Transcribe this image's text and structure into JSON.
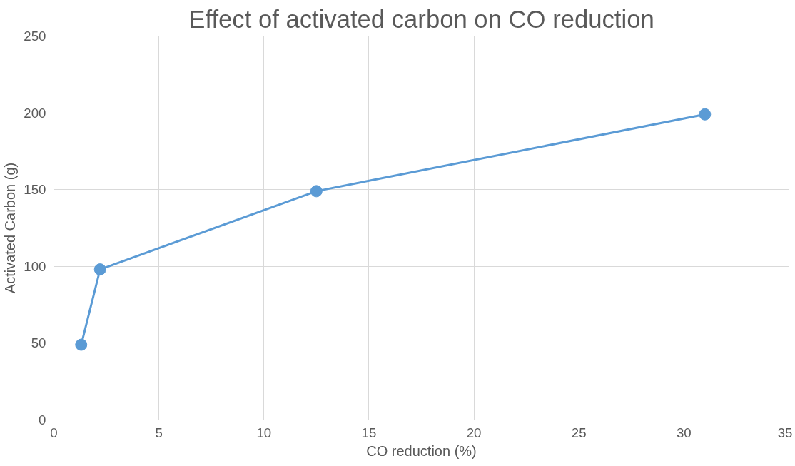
{
  "chart_data": {
    "type": "line",
    "title": "Effect of activated carbon on CO reduction",
    "xlabel": "CO reduction (%)",
    "ylabel": "Activated Carbon (g)",
    "x": [
      1.3,
      2.2,
      12.5,
      31.0
    ],
    "series": [
      {
        "color": "#5b9bd5",
        "values": [
          49,
          98,
          149,
          199
        ]
      }
    ],
    "xlim": [
      0,
      35
    ],
    "xticks": [
      0,
      5,
      10,
      15,
      20,
      25,
      30,
      35
    ],
    "ylim": [
      0,
      250
    ],
    "yticks": [
      0,
      50,
      100,
      150,
      200,
      250
    ],
    "grid": true,
    "marker": "circle",
    "line_style": "solid"
  }
}
